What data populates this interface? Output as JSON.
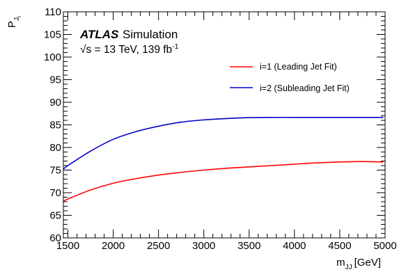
{
  "chart_data": {
    "type": "line",
    "xlabel": {
      "main": "m",
      "sub": "JJ",
      "unit": "[GeV]"
    },
    "ylabel": {
      "main": "P",
      "sub": "J",
      "subsub": "i"
    },
    "xlim": [
      1450,
      5000
    ],
    "ylim": [
      60,
      110
    ],
    "xticks": [
      1500,
      2000,
      2500,
      3000,
      3500,
      4000,
      4500,
      5000
    ],
    "yticks": [
      60,
      65,
      70,
      75,
      80,
      85,
      90,
      95,
      100,
      105,
      110
    ],
    "grid": false,
    "legend_position": "top-right",
    "annotation": {
      "experiment": "ATLAS",
      "label": "Simulation",
      "energy_prefix": "√s = 13 TeV, 139 fb",
      "energy_exponent": "-1"
    },
    "series": [
      {
        "name": "i=1 (Leading Jet Fit)",
        "color": "#ff0000",
        "x": [
          1450,
          1500,
          1750,
          2000,
          2250,
          2500,
          2750,
          3000,
          3250,
          3500,
          3750,
          4000,
          4250,
          4500,
          4750,
          4980
        ],
        "y": [
          68.1,
          68.6,
          70.6,
          72.1,
          73.1,
          73.9,
          74.5,
          75.0,
          75.4,
          75.7,
          76.0,
          76.3,
          76.6,
          76.8,
          76.9,
          76.8
        ]
      },
      {
        "name": "i=2 (Subleading Jet Fit)",
        "color": "#0000cc",
        "x": [
          1450,
          1500,
          1750,
          2000,
          2250,
          2500,
          2750,
          3000,
          3250,
          3500,
          3750,
          4000,
          4250,
          4500,
          4750,
          4980
        ],
        "y": [
          75.2,
          76.0,
          79.2,
          81.8,
          83.5,
          84.7,
          85.6,
          86.1,
          86.4,
          86.6,
          86.65,
          86.65,
          86.65,
          86.65,
          86.65,
          86.65
        ]
      }
    ]
  }
}
